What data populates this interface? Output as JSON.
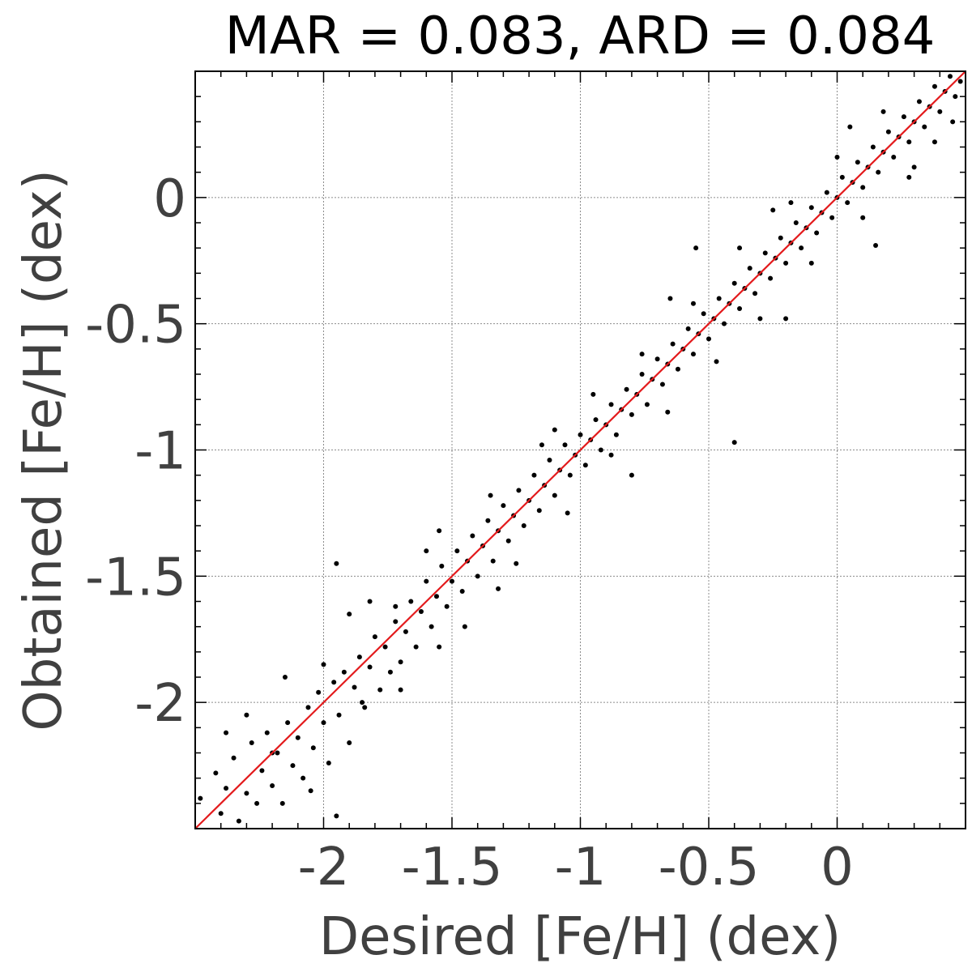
{
  "chart_data": {
    "type": "scatter",
    "title": "MAR = 0.083, ARD = 0.084",
    "xlabel": "Desired [Fe/H] (dex)",
    "ylabel": "Obtained [Fe/H] (dex)",
    "xlim": [
      -2.5,
      0.5
    ],
    "ylim": [
      -2.5,
      0.5
    ],
    "x_ticks": [
      -2,
      -1.5,
      -1,
      -0.5,
      0
    ],
    "x_tick_labels": [
      "-2",
      "-1.5",
      "-1",
      "-0.5",
      "0"
    ],
    "y_ticks": [
      -2,
      -1.5,
      -1,
      -0.5,
      0
    ],
    "y_tick_labels": [
      "-2",
      "-1.5",
      "-1",
      "-0.5",
      "0"
    ],
    "grid": true,
    "series": [
      {
        "marker_color": "#000000",
        "points": [
          [
            -2.48,
            -2.38
          ],
          [
            -2.45,
            -2.52
          ],
          [
            -2.42,
            -2.28
          ],
          [
            -2.4,
            -2.44
          ],
          [
            -2.38,
            -2.34
          ],
          [
            -2.35,
            -2.22
          ],
          [
            -2.33,
            -2.47
          ],
          [
            -2.3,
            -2.36
          ],
          [
            -2.28,
            -2.16
          ],
          [
            -2.26,
            -2.4
          ],
          [
            -2.24,
            -2.27
          ],
          [
            -2.22,
            -2.12
          ],
          [
            -2.2,
            -2.33
          ],
          [
            -2.18,
            -2.2
          ],
          [
            -2.16,
            -2.4
          ],
          [
            -2.14,
            -2.08
          ],
          [
            -2.12,
            -2.25
          ],
          [
            -2.1,
            -2.14
          ],
          [
            -2.08,
            -2.3
          ],
          [
            -2.06,
            -2.02
          ],
          [
            -2.04,
            -2.18
          ],
          [
            -2.02,
            -1.96
          ],
          [
            -2.0,
            -2.08
          ],
          [
            -1.98,
            -2.24
          ],
          [
            -1.96,
            -1.92
          ],
          [
            -1.94,
            -2.05
          ],
          [
            -1.92,
            -1.88
          ],
          [
            -1.9,
            -2.16
          ],
          [
            -1.88,
            -1.94
          ],
          [
            -1.86,
            -1.82
          ],
          [
            -1.84,
            -2.02
          ],
          [
            -1.82,
            -1.86
          ],
          [
            -1.8,
            -1.74
          ],
          [
            -1.78,
            -1.95
          ],
          [
            -1.76,
            -1.78
          ],
          [
            -1.74,
            -1.88
          ],
          [
            -1.72,
            -1.68
          ],
          [
            -1.7,
            -1.84
          ],
          [
            -1.68,
            -1.72
          ],
          [
            -1.66,
            -1.6
          ],
          [
            -1.64,
            -1.78
          ],
          [
            -1.62,
            -1.64
          ],
          [
            -1.6,
            -1.52
          ],
          [
            -1.58,
            -1.7
          ],
          [
            -1.56,
            -1.58
          ],
          [
            -1.54,
            -1.46
          ],
          [
            -1.52,
            -1.62
          ],
          [
            -1.5,
            -1.52
          ],
          [
            -1.48,
            -1.4
          ],
          [
            -1.46,
            -1.56
          ],
          [
            -1.44,
            -1.44
          ],
          [
            -1.42,
            -1.34
          ],
          [
            -1.4,
            -1.5
          ],
          [
            -1.38,
            -1.38
          ],
          [
            -1.36,
            -1.28
          ],
          [
            -1.34,
            -1.44
          ],
          [
            -1.32,
            -1.32
          ],
          [
            -1.3,
            -1.22
          ],
          [
            -1.28,
            -1.36
          ],
          [
            -1.26,
            -1.26
          ],
          [
            -1.24,
            -1.16
          ],
          [
            -1.22,
            -1.3
          ],
          [
            -1.2,
            -1.2
          ],
          [
            -1.18,
            -1.1
          ],
          [
            -1.16,
            -1.24
          ],
          [
            -1.14,
            -1.14
          ],
          [
            -1.12,
            -1.04
          ],
          [
            -1.1,
            -1.18
          ],
          [
            -1.08,
            -1.08
          ],
          [
            -1.06,
            -0.98
          ],
          [
            -1.04,
            -1.1
          ],
          [
            -1.02,
            -1.02
          ],
          [
            -1.0,
            -0.94
          ],
          [
            -0.98,
            -1.06
          ],
          [
            -0.96,
            -0.96
          ],
          [
            -0.94,
            -0.88
          ],
          [
            -0.92,
            -1.0
          ],
          [
            -0.9,
            -0.9
          ],
          [
            -0.88,
            -0.82
          ],
          [
            -0.86,
            -0.94
          ],
          [
            -0.84,
            -0.84
          ],
          [
            -0.82,
            -0.76
          ],
          [
            -0.8,
            -0.86
          ],
          [
            -0.78,
            -0.78
          ],
          [
            -0.76,
            -0.7
          ],
          [
            -0.74,
            -0.82
          ],
          [
            -0.72,
            -0.72
          ],
          [
            -0.7,
            -0.64
          ],
          [
            -0.68,
            -0.74
          ],
          [
            -0.66,
            -0.66
          ],
          [
            -0.64,
            -0.58
          ],
          [
            -0.62,
            -0.68
          ],
          [
            -0.6,
            -0.6
          ],
          [
            -0.58,
            -0.52
          ],
          [
            -0.56,
            -0.62
          ],
          [
            -0.54,
            -0.54
          ],
          [
            -0.52,
            -0.46
          ],
          [
            -0.5,
            -0.56
          ],
          [
            -0.48,
            -0.48
          ],
          [
            -0.46,
            -0.4
          ],
          [
            -0.44,
            -0.5
          ],
          [
            -0.42,
            -0.42
          ],
          [
            -0.4,
            -0.34
          ],
          [
            -0.38,
            -0.44
          ],
          [
            -0.36,
            -0.36
          ],
          [
            -0.34,
            -0.28
          ],
          [
            -0.32,
            -0.38
          ],
          [
            -0.3,
            -0.3
          ],
          [
            -0.28,
            -0.22
          ],
          [
            -0.26,
            -0.32
          ],
          [
            -0.24,
            -0.24
          ],
          [
            -0.22,
            -0.16
          ],
          [
            -0.2,
            -0.26
          ],
          [
            -0.18,
            -0.18
          ],
          [
            -0.16,
            -0.1
          ],
          [
            -0.14,
            -0.2
          ],
          [
            -0.12,
            -0.12
          ],
          [
            -0.1,
            -0.04
          ],
          [
            -0.08,
            -0.14
          ],
          [
            -0.06,
            -0.06
          ],
          [
            -0.04,
            0.02
          ],
          [
            -0.02,
            -0.08
          ],
          [
            0.0,
            0.0
          ],
          [
            0.02,
            0.08
          ],
          [
            0.04,
            -0.02
          ],
          [
            0.06,
            0.06
          ],
          [
            0.08,
            0.14
          ],
          [
            0.1,
            0.04
          ],
          [
            0.12,
            0.12
          ],
          [
            0.14,
            0.2
          ],
          [
            0.16,
            0.1
          ],
          [
            0.18,
            0.18
          ],
          [
            0.2,
            0.26
          ],
          [
            0.22,
            0.16
          ],
          [
            0.24,
            0.24
          ],
          [
            0.26,
            0.32
          ],
          [
            0.28,
            0.22
          ],
          [
            0.3,
            0.3
          ],
          [
            0.32,
            0.38
          ],
          [
            0.34,
            0.28
          ],
          [
            0.36,
            0.36
          ],
          [
            0.38,
            0.44
          ],
          [
            0.4,
            0.34
          ],
          [
            0.42,
            0.42
          ],
          [
            0.44,
            0.48
          ],
          [
            0.46,
            0.4
          ],
          [
            0.48,
            0.46
          ],
          [
            -2.3,
            -2.05
          ],
          [
            -2.2,
            -2.2
          ],
          [
            -2.05,
            -2.35
          ],
          [
            -1.95,
            -2.45
          ],
          [
            -1.9,
            -1.65
          ],
          [
            -1.82,
            -1.6
          ],
          [
            -1.7,
            -1.95
          ],
          [
            -1.55,
            -1.32
          ],
          [
            -1.45,
            -1.7
          ],
          [
            -1.35,
            -1.18
          ],
          [
            -1.25,
            -1.45
          ],
          [
            -1.15,
            -0.98
          ],
          [
            -1.05,
            -1.25
          ],
          [
            -0.95,
            -0.78
          ],
          [
            -0.88,
            -1.02
          ],
          [
            -0.76,
            -0.62
          ],
          [
            -0.66,
            -0.85
          ],
          [
            -0.56,
            -0.42
          ],
          [
            -0.47,
            -0.65
          ],
          [
            -0.38,
            -0.2
          ],
          [
            -0.3,
            -0.48
          ],
          [
            -0.18,
            -0.02
          ],
          [
            -0.1,
            -0.26
          ],
          [
            0.0,
            0.16
          ],
          [
            0.1,
            -0.08
          ],
          [
            0.18,
            0.34
          ],
          [
            0.28,
            0.08
          ],
          [
            0.38,
            0.22
          ],
          [
            0.45,
            0.3
          ],
          [
            -0.4,
            -0.97
          ],
          [
            0.15,
            -0.19
          ],
          [
            -0.55,
            -0.2
          ],
          [
            -1.95,
            -1.45
          ],
          [
            -1.72,
            -1.62
          ],
          [
            -1.55,
            -1.78
          ],
          [
            -1.32,
            -1.55
          ],
          [
            -1.85,
            -2.0
          ],
          [
            -2.38,
            -2.12
          ],
          [
            -2.15,
            -1.9
          ],
          [
            -0.65,
            -0.4
          ],
          [
            -0.25,
            -0.05
          ],
          [
            0.05,
            0.28
          ],
          [
            0.3,
            0.12
          ],
          [
            -1.1,
            -0.92
          ],
          [
            -0.8,
            -1.1
          ],
          [
            -0.2,
            -0.48
          ],
          [
            -1.6,
            -1.4
          ],
          [
            -2.0,
            -1.85
          ]
        ]
      }
    ],
    "reference_line": {
      "type": "y = x",
      "color": "#e31a1c",
      "from": [
        -2.5,
        -2.5
      ],
      "to": [
        0.5,
        0.5
      ]
    }
  }
}
